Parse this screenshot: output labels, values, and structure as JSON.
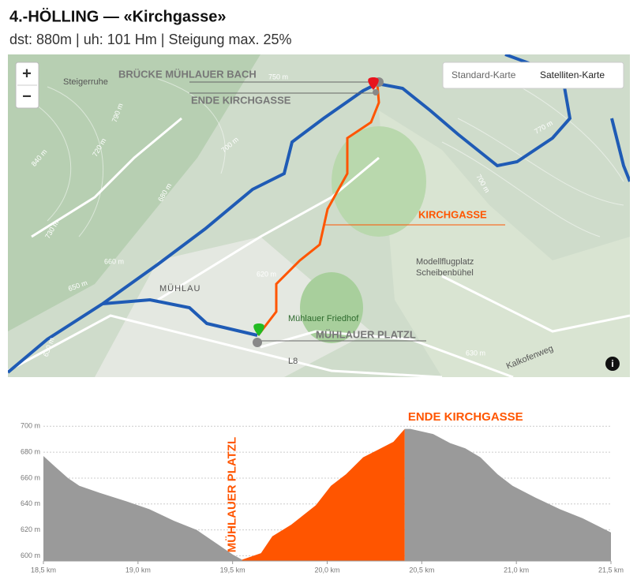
{
  "header": {
    "title": "4.-HÖLLING — «Kirchgasse»",
    "subtitle": "dst: 880m | uh: 101 Hm | Steigung max. 25%"
  },
  "map": {
    "zoom_in": "+",
    "zoom_out": "−",
    "map_types": [
      "Standard-Karte",
      "Satelliten-Karte"
    ],
    "info": "i",
    "route_labels": [
      "BRÜCKE MÜHLAUER BACH",
      "ENDE KIRCHGASSE",
      "KIRCHGASSE",
      "MÜHLAUER PLATZL"
    ],
    "place_labels": [
      "Steigerruhe",
      "MÜHLAU",
      "Mühlauer Friedhof",
      "Modellflugplatz",
      "Scheibenbühel",
      "Kalkofenweg",
      "L8"
    ],
    "contour_labels": [
      "750 m",
      "790 m",
      "700 m",
      "720 m",
      "680 m",
      "840 m",
      "730 m",
      "660 m",
      "650 m",
      "620 m",
      "630 m",
      "630 m",
      "770 m",
      "700 m"
    ]
  },
  "chart_data": {
    "type": "area",
    "x": [
      18.5,
      18.56,
      18.63,
      18.69,
      18.81,
      18.94,
      19.06,
      19.19,
      19.31,
      19.42,
      19.5,
      19.55,
      19.65,
      19.71,
      19.81,
      19.94,
      20.02,
      20.1,
      20.19,
      20.27,
      20.35,
      20.41,
      20.44,
      20.56,
      20.65,
      20.73,
      20.81,
      20.9,
      20.98,
      21.1,
      21.23,
      21.35,
      21.5
    ],
    "values": [
      677,
      669,
      660,
      654,
      648,
      642,
      636,
      627,
      620,
      609,
      601,
      597,
      602,
      615,
      624,
      639,
      654,
      663,
      676,
      682,
      688,
      698,
      698,
      694,
      687,
      683,
      676,
      663,
      654,
      645,
      636,
      629,
      618
    ],
    "color": "#9a9a9a",
    "highlight_color": "#ff5500",
    "annotations": [
      {
        "text": "MÜHLAUER PLATZL",
        "x": 19.55
      },
      {
        "text": "ENDE KIRCHGASSE",
        "x": 20.41
      }
    ],
    "xlim": [
      18.5,
      21.5
    ],
    "ylim": [
      596,
      702
    ],
    "xticks": [
      {
        "value": 18.5,
        "label": "18,5 km"
      },
      {
        "value": 19.0,
        "label": "19,0 km"
      },
      {
        "value": 19.5,
        "label": "19,5 km"
      },
      {
        "value": 20.0,
        "label": "20,0 km"
      },
      {
        "value": 20.5,
        "label": "20,5 km"
      },
      {
        "value": 21.0,
        "label": "21,0 km"
      },
      {
        "value": 21.5,
        "label": "21,5 km"
      }
    ],
    "yticks": [
      {
        "value": 600,
        "label": "600 m"
      },
      {
        "value": 620,
        "label": "620 m"
      },
      {
        "value": 640,
        "label": "640 m"
      },
      {
        "value": 660,
        "label": "660 m"
      },
      {
        "value": 680,
        "label": "680 m"
      },
      {
        "value": 700,
        "label": "700 m"
      }
    ],
    "grid": true
  }
}
